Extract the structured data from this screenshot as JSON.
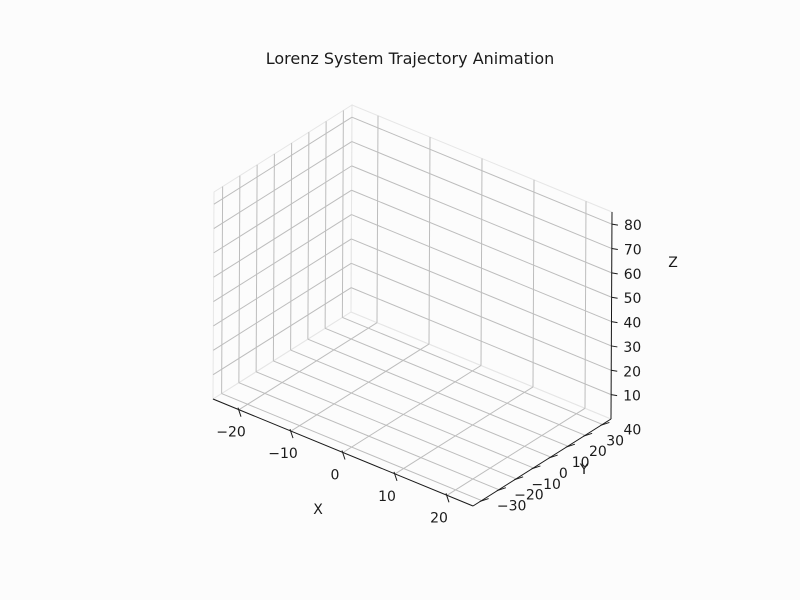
{
  "chart_data": {
    "type": "line",
    "projection": "3d",
    "title": "Lorenz System Trajectory Animation",
    "xlabel": "X",
    "ylabel": "Y",
    "zlabel": "Z",
    "xlim": [
      -25,
      25
    ],
    "ylim": [
      -35,
      45
    ],
    "zlim": [
      0,
      85
    ],
    "xticks": [
      -20,
      -10,
      0,
      10,
      20
    ],
    "yticks": [
      -30,
      -20,
      -10,
      0,
      10,
      20,
      30,
      40
    ],
    "zticks": [
      10,
      20,
      30,
      40,
      50,
      60,
      70,
      80
    ],
    "xtick_labels": [
      "−20",
      "−10",
      "0",
      "10",
      "20"
    ],
    "ytick_labels": [
      "−30",
      "−20",
      "−10",
      "0",
      "10",
      "20",
      "30",
      "40"
    ],
    "ztick_labels": [
      "10",
      "20",
      "30",
      "40",
      "50",
      "60",
      "70",
      "80"
    ],
    "grid": true,
    "series": [],
    "colors": {
      "grid": "#bdbdbd",
      "pane_edge": "#e6e6e6",
      "text": "#1a1a1a",
      "background": "#fcfcfc"
    }
  }
}
